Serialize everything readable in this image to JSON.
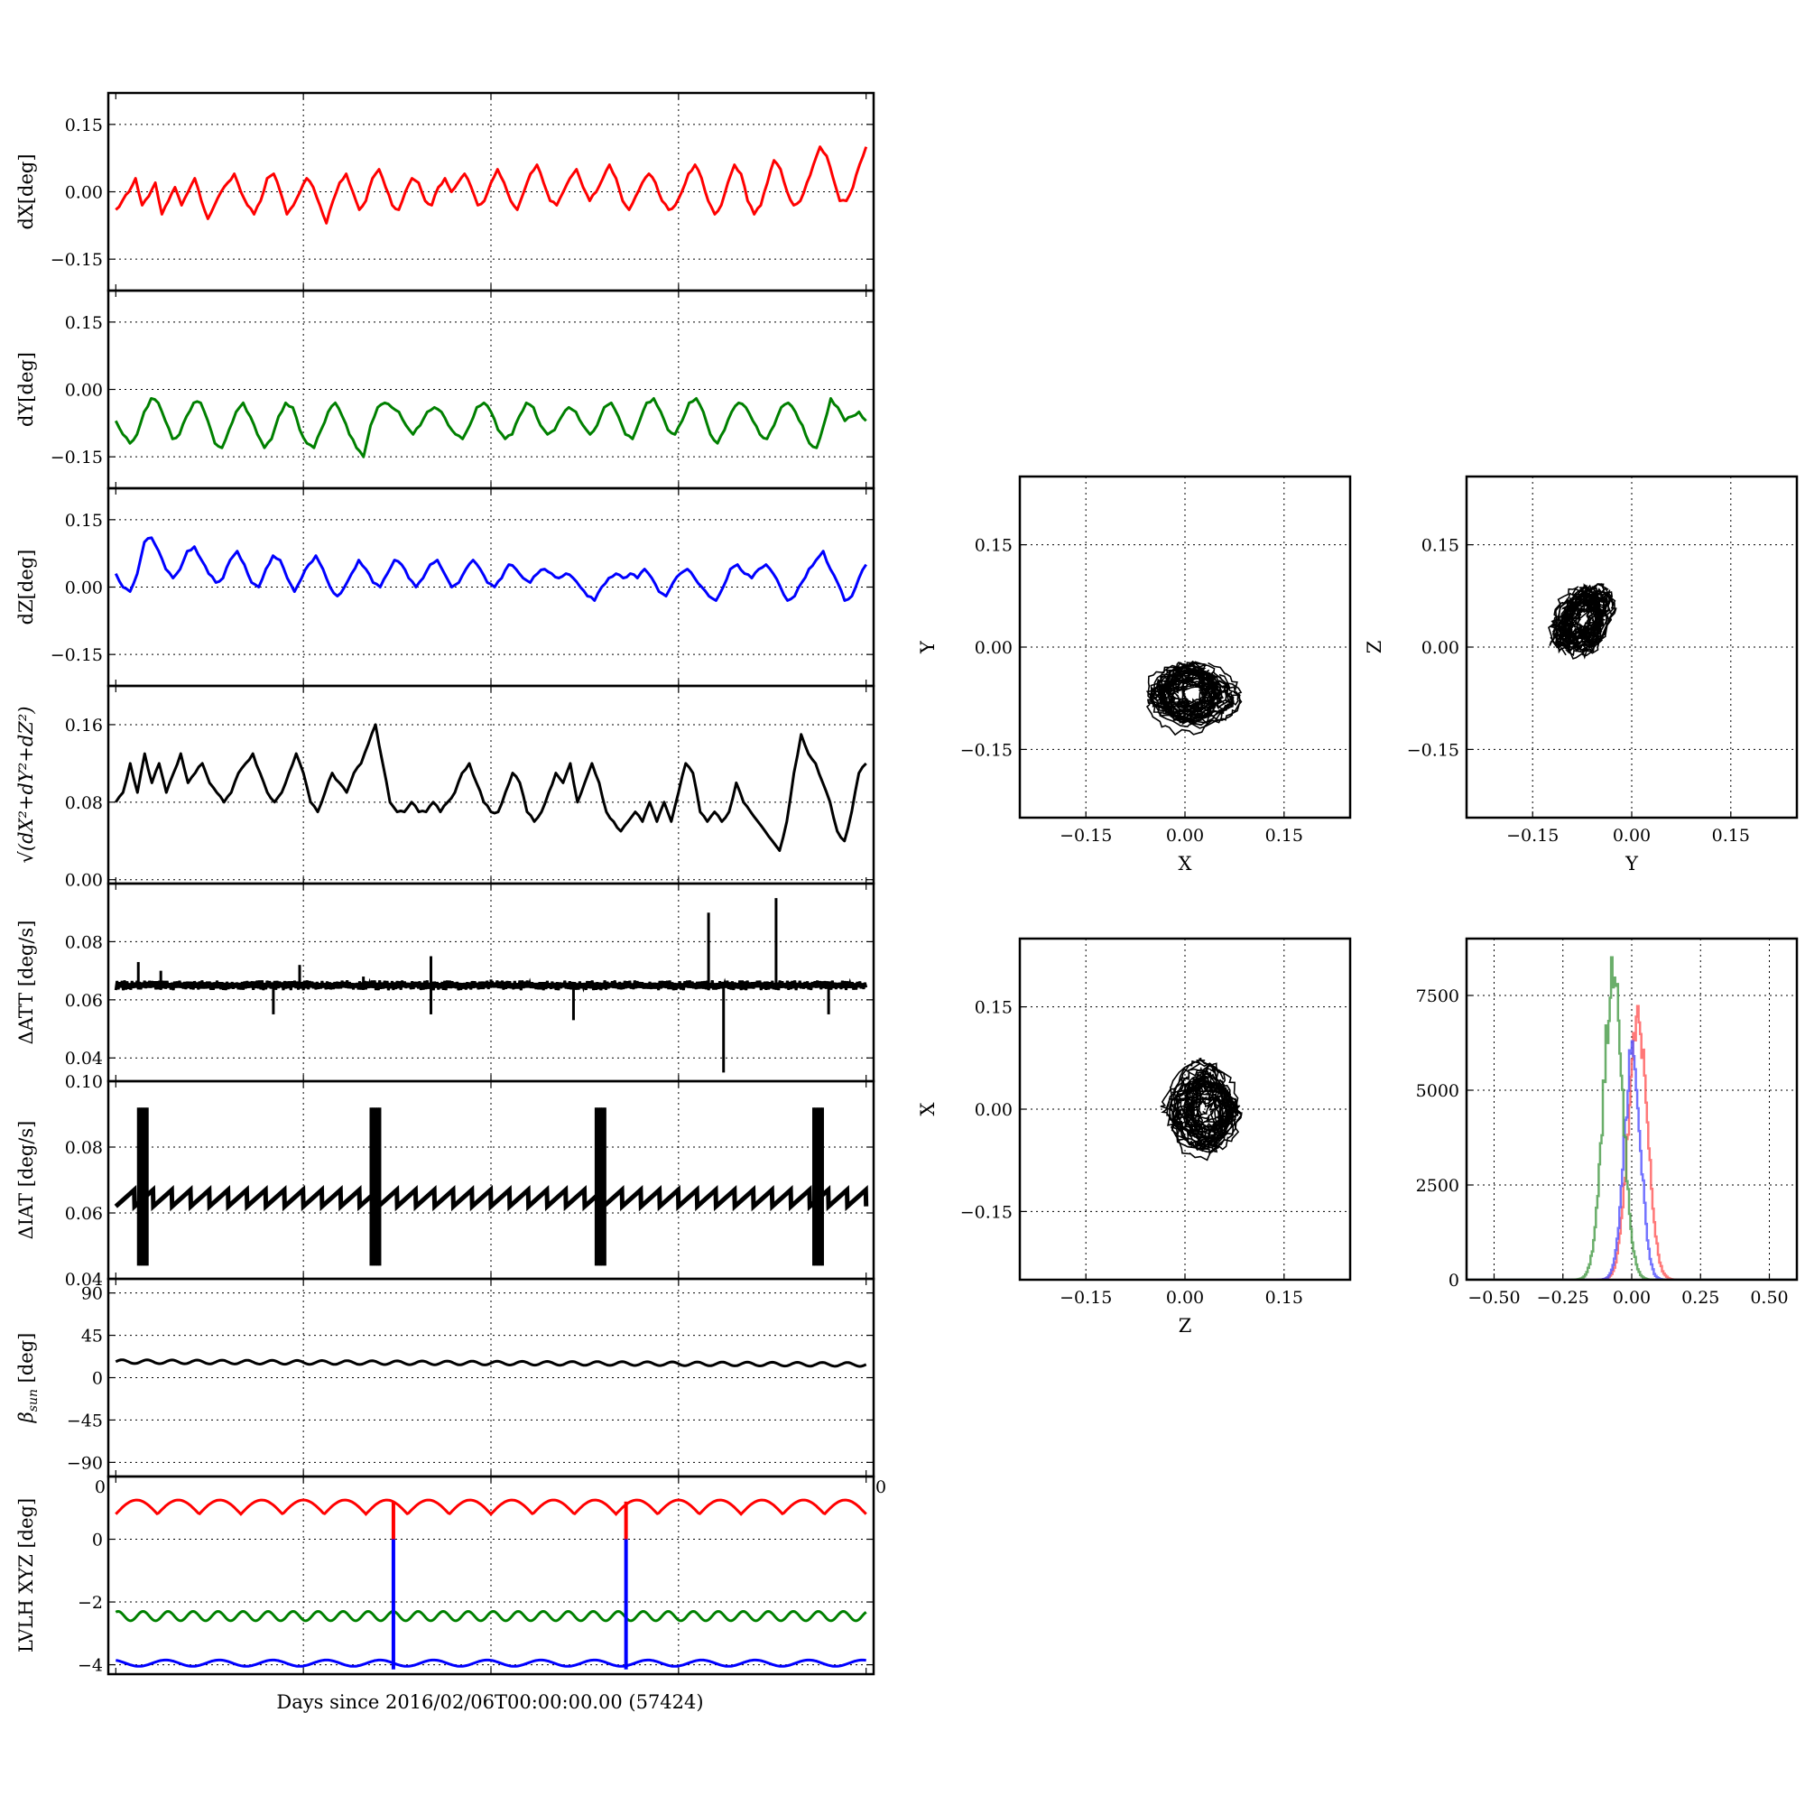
{
  "figure": {
    "shared_xlabel": "Days since 2016/02/06T00:00:00.00 (57424)"
  },
  "chart_data": [
    {
      "id": "dX",
      "type": "line",
      "ylabel": "dX[deg]",
      "ylabel_html": "dX[deg]",
      "ylim": [
        -0.22,
        0.22
      ],
      "yticks": [
        -0.15,
        0.0,
        0.15
      ],
      "yticklabels": [
        "−0.15",
        "0.00",
        "0.15"
      ],
      "xlim": [
        -0.01,
        1.01
      ],
      "grid": true,
      "series": [
        {
          "color": "#ff0000",
          "y": [
            -0.04,
            -0.02,
            0.0,
            0.03,
            -0.03,
            -0.01,
            0.02,
            -0.05,
            -0.02,
            0.01,
            -0.03,
            0.0,
            0.03,
            -0.02,
            -0.06,
            -0.03,
            0.0,
            0.02,
            0.04,
            0.0,
            -0.03,
            -0.05,
            -0.02,
            0.03,
            0.04,
            0.0,
            -0.05,
            -0.03,
            0.0,
            0.03,
            0.01,
            -0.03,
            -0.07,
            -0.02,
            0.02,
            0.04,
            0.0,
            -0.04,
            -0.02,
            0.03,
            0.05,
            0.01,
            -0.03,
            -0.04,
            0.0,
            0.03,
            0.02,
            -0.02,
            -0.03,
            0.01,
            0.03,
            0.0,
            0.02,
            0.04,
            0.01,
            -0.03,
            -0.02,
            0.02,
            0.05,
            0.02,
            -0.02,
            -0.04,
            0.0,
            0.04,
            0.06,
            0.02,
            -0.02,
            -0.03,
            0.0,
            0.03,
            0.05,
            0.01,
            -0.02,
            0.0,
            0.03,
            0.06,
            0.03,
            -0.02,
            -0.04,
            -0.01,
            0.02,
            0.04,
            0.02,
            -0.02,
            -0.04,
            -0.03,
            0.0,
            0.04,
            0.06,
            0.03,
            -0.02,
            -0.05,
            -0.03,
            0.02,
            0.06,
            0.04,
            -0.02,
            -0.05,
            -0.03,
            0.02,
            0.07,
            0.05,
            0.0,
            -0.03,
            -0.02,
            0.02,
            0.06,
            0.1,
            0.08,
            0.03,
            -0.02,
            -0.02,
            0.01,
            0.06,
            0.1
          ]
        }
      ]
    },
    {
      "id": "dY",
      "type": "line",
      "ylabel": "dY[deg]",
      "ylabel_html": "dY[deg]",
      "ylim": [
        -0.22,
        0.22
      ],
      "yticks": [
        -0.15,
        0.0,
        0.15
      ],
      "yticklabels": [
        "−0.15",
        "0.00",
        "0.15"
      ],
      "xlim": [
        -0.01,
        1.01
      ],
      "grid": true,
      "series": [
        {
          "color": "#008000",
          "y": [
            -0.07,
            -0.1,
            -0.12,
            -0.1,
            -0.05,
            -0.02,
            -0.03,
            -0.07,
            -0.11,
            -0.1,
            -0.06,
            -0.03,
            -0.03,
            -0.07,
            -0.12,
            -0.13,
            -0.09,
            -0.05,
            -0.03,
            -0.06,
            -0.1,
            -0.13,
            -0.11,
            -0.06,
            -0.03,
            -0.04,
            -0.09,
            -0.12,
            -0.13,
            -0.09,
            -0.05,
            -0.03,
            -0.06,
            -0.1,
            -0.13,
            -0.15,
            -0.08,
            -0.04,
            -0.03,
            -0.04,
            -0.05,
            -0.08,
            -0.1,
            -0.08,
            -0.05,
            -0.04,
            -0.05,
            -0.08,
            -0.1,
            -0.11,
            -0.08,
            -0.04,
            -0.03,
            -0.05,
            -0.09,
            -0.11,
            -0.1,
            -0.06,
            -0.03,
            -0.04,
            -0.08,
            -0.1,
            -0.09,
            -0.06,
            -0.04,
            -0.05,
            -0.08,
            -0.1,
            -0.08,
            -0.04,
            -0.03,
            -0.06,
            -0.1,
            -0.11,
            -0.07,
            -0.03,
            -0.02,
            -0.05,
            -0.09,
            -0.1,
            -0.07,
            -0.03,
            -0.02,
            -0.05,
            -0.1,
            -0.12,
            -0.09,
            -0.05,
            -0.03,
            -0.04,
            -0.07,
            -0.1,
            -0.11,
            -0.08,
            -0.04,
            -0.03,
            -0.05,
            -0.08,
            -0.12,
            -0.13,
            -0.08,
            -0.02,
            -0.04,
            -0.07,
            -0.06,
            -0.05,
            -0.07
          ]
        }
      ]
    },
    {
      "id": "dZ",
      "type": "line",
      "ylabel": "dZ[deg]",
      "ylabel_html": "dZ[deg]",
      "ylim": [
        -0.22,
        0.22
      ],
      "yticks": [
        -0.15,
        0.0,
        0.15
      ],
      "yticklabels": [
        "−0.15",
        "0.00",
        "0.15"
      ],
      "xlim": [
        -0.01,
        1.01
      ],
      "grid": true,
      "series": [
        {
          "color": "#0000ff",
          "y": [
            0.03,
            0.0,
            -0.01,
            0.03,
            0.1,
            0.11,
            0.08,
            0.04,
            0.02,
            0.04,
            0.08,
            0.09,
            0.06,
            0.03,
            0.01,
            0.02,
            0.06,
            0.08,
            0.05,
            0.01,
            0.0,
            0.04,
            0.07,
            0.06,
            0.02,
            -0.01,
            0.02,
            0.05,
            0.07,
            0.04,
            0.0,
            -0.02,
            0.0,
            0.03,
            0.06,
            0.04,
            0.01,
            0.0,
            0.03,
            0.06,
            0.05,
            0.02,
            0.0,
            0.02,
            0.05,
            0.06,
            0.03,
            0.0,
            0.01,
            0.04,
            0.06,
            0.04,
            0.01,
            0.0,
            0.02,
            0.05,
            0.04,
            0.02,
            0.01,
            0.03,
            0.04,
            0.03,
            0.02,
            0.03,
            0.02,
            0.0,
            -0.02,
            -0.03,
            0.0,
            0.02,
            0.03,
            0.02,
            0.03,
            0.02,
            0.04,
            0.02,
            -0.01,
            -0.02,
            0.01,
            0.03,
            0.04,
            0.02,
            0.0,
            -0.02,
            -0.03,
            0.0,
            0.04,
            0.05,
            0.03,
            0.02,
            0.04,
            0.05,
            0.03,
            0.0,
            -0.03,
            -0.02,
            0.01,
            0.04,
            0.06,
            0.08,
            0.04,
            0.01,
            -0.03,
            -0.02,
            0.02,
            0.05
          ]
        }
      ]
    },
    {
      "id": "dR",
      "type": "line",
      "ylabel": "√(dX²+dY²+dZ²)",
      "ylabel_html": "sqrt",
      "ylim": [
        -0.004,
        0.2
      ],
      "yticks": [
        0.0,
        0.08,
        0.16
      ],
      "yticklabels": [
        "0.00",
        "0.08",
        "0.16"
      ],
      "xlim": [
        -0.01,
        1.01
      ],
      "grid": true,
      "series": [
        {
          "color": "#000000",
          "y": [
            0.08,
            0.09,
            0.12,
            0.09,
            0.13,
            0.1,
            0.12,
            0.09,
            0.11,
            0.13,
            0.1,
            0.11,
            0.12,
            0.1,
            0.09,
            0.08,
            0.09,
            0.11,
            0.12,
            0.13,
            0.11,
            0.09,
            0.08,
            0.09,
            0.11,
            0.13,
            0.11,
            0.08,
            0.07,
            0.09,
            0.11,
            0.1,
            0.09,
            0.11,
            0.12,
            0.14,
            0.16,
            0.12,
            0.08,
            0.07,
            0.07,
            0.08,
            0.07,
            0.07,
            0.08,
            0.07,
            0.08,
            0.09,
            0.11,
            0.12,
            0.1,
            0.08,
            0.07,
            0.07,
            0.09,
            0.11,
            0.1,
            0.07,
            0.06,
            0.07,
            0.09,
            0.11,
            0.1,
            0.12,
            0.08,
            0.1,
            0.12,
            0.1,
            0.07,
            0.06,
            0.05,
            0.06,
            0.07,
            0.06,
            0.08,
            0.06,
            0.08,
            0.06,
            0.09,
            0.12,
            0.11,
            0.07,
            0.06,
            0.07,
            0.06,
            0.07,
            0.1,
            0.08,
            0.07,
            0.06,
            0.05,
            0.04,
            0.03,
            0.06,
            0.11,
            0.15,
            0.13,
            0.12,
            0.1,
            0.08,
            0.05,
            0.04,
            0.07,
            0.11,
            0.12
          ]
        }
      ]
    },
    {
      "id": "dATT",
      "type": "line",
      "ylabel": "ΔATT [deg/s]",
      "ylabel_html": "ΔATT [deg/s]",
      "ylim": [
        0.032,
        0.1
      ],
      "yticks": [
        0.04,
        0.06,
        0.08
      ],
      "yticklabels": [
        "0.04",
        "0.06",
        "0.08"
      ],
      "xlim": [
        -0.01,
        1.01
      ],
      "grid": true,
      "baseline": 0.065,
      "spikes": [
        [
          0.03,
          0.073
        ],
        [
          0.21,
          0.055
        ],
        [
          0.245,
          0.072
        ],
        [
          0.42,
          0.055
        ],
        [
          0.42,
          0.075
        ],
        [
          0.61,
          0.053
        ],
        [
          0.79,
          0.09
        ],
        [
          0.81,
          0.035
        ],
        [
          0.88,
          0.095
        ],
        [
          0.95,
          0.055
        ],
        [
          0.06,
          0.07
        ],
        [
          0.33,
          0.068
        ],
        [
          0.5,
          0.067
        ],
        [
          0.7,
          0.066
        ]
      ]
    },
    {
      "id": "dIAT",
      "type": "line",
      "ylabel": "ΔIAT [deg/s]",
      "ylabel_html": "ΔIAT [deg/s]",
      "ylim": [
        0.04,
        0.1
      ],
      "yticks": [
        0.04,
        0.06,
        0.08,
        0.1
      ],
      "yticklabels": [
        "0.04",
        "0.06",
        "0.08",
        "0.10"
      ],
      "xlim": [
        -0.01,
        1.01
      ],
      "grid": true,
      "sawtooth": {
        "low": 0.062,
        "high": 0.067,
        "teeth": 40
      },
      "bursts": [
        0.03,
        0.34,
        0.64,
        0.93
      ],
      "burst_range": [
        0.044,
        0.092
      ]
    },
    {
      "id": "beta",
      "type": "line",
      "ylabel": "βsun [deg]",
      "ylabel_html": "beta",
      "ylim": [
        -105,
        105
      ],
      "yticks": [
        -90,
        -45,
        0,
        45,
        90
      ],
      "yticklabels": [
        "−90",
        "−45",
        "0",
        "45",
        "90"
      ],
      "xlim": [
        -0.01,
        1.01
      ],
      "grid": true,
      "series": [
        {
          "color": "#000000",
          "mean": 17,
          "amplitude": 2,
          "cycles": 30
        }
      ]
    },
    {
      "id": "lvlh",
      "type": "line",
      "ylabel": "LVLH XYZ [deg]",
      "ylabel_html": "LVLH XYZ [deg]",
      "ylim": [
        -4.3,
        2.0
      ],
      "yticks": [
        -4,
        -2,
        0
      ],
      "yticklabels": [
        "−4",
        "−2",
        "0"
      ],
      "xlim": [
        -0.01,
        1.01
      ],
      "grid": true,
      "edge_ticklabels": [
        "0",
        "0"
      ],
      "series": [
        {
          "color": "#ff0000",
          "mean": 0.8,
          "amplitude": 0.45,
          "cycles": 18
        },
        {
          "color": "#008000",
          "mean": -2.45,
          "amplitude": 0.15,
          "cycles": 30
        },
        {
          "color": "#0000ff",
          "mean": -3.95,
          "amplitude": 0.1,
          "cycles": 14
        }
      ],
      "glitches": [
        0.37,
        0.68
      ]
    },
    {
      "id": "XY",
      "type": "scatter",
      "xlabel": "X",
      "ylabel": "Y",
      "xlim": [
        -0.25,
        0.25
      ],
      "ylim": [
        -0.25,
        0.25
      ],
      "xticks": [
        -0.15,
        0.0,
        0.15
      ],
      "xticklabels": [
        "−0.15",
        "0.00",
        "0.15"
      ],
      "yticks": [
        -0.15,
        0.0,
        0.15
      ],
      "yticklabels": [
        "−0.15",
        "0.00",
        "0.15"
      ],
      "cloud": {
        "cx": 0.01,
        "cy": -0.07,
        "rx": 0.06,
        "ry": 0.045
      }
    },
    {
      "id": "YZ",
      "type": "scatter",
      "xlabel": "Y",
      "ylabel": "Z",
      "xlim": [
        -0.25,
        0.25
      ],
      "ylim": [
        -0.25,
        0.25
      ],
      "xticks": [
        -0.15,
        0.0,
        0.15
      ],
      "xticklabels": [
        "−0.15",
        "0.00",
        "0.15"
      ],
      "yticks": [
        -0.15,
        0.0,
        0.15
      ],
      "yticklabels": [
        "−0.15",
        "0.00",
        "0.15"
      ],
      "cloud": {
        "cx": -0.075,
        "cy": 0.04,
        "rx": 0.05,
        "ry": 0.04,
        "tilt": 0.6
      }
    },
    {
      "id": "ZX",
      "type": "scatter",
      "xlabel": "Z",
      "ylabel": "X",
      "xlim": [
        -0.25,
        0.25
      ],
      "ylim": [
        -0.25,
        0.25
      ],
      "xticks": [
        -0.15,
        0.0,
        0.15
      ],
      "xticklabels": [
        "−0.15",
        "0.00",
        "0.15"
      ],
      "yticks": [
        -0.15,
        0.0,
        0.15
      ],
      "yticklabels": [
        "−0.15",
        "0.00",
        "0.15"
      ],
      "cloud": {
        "cx": 0.03,
        "cy": 0.0,
        "rx": 0.05,
        "ry": 0.06
      }
    },
    {
      "id": "hist",
      "type": "line",
      "xlim": [
        -0.6,
        0.6
      ],
      "ylim": [
        0,
        9000
      ],
      "xticks": [
        -0.5,
        -0.25,
        0.0,
        0.25,
        0.5
      ],
      "xticklabels": [
        "−0.50",
        "−0.25",
        "0.00",
        "0.25",
        "0.50"
      ],
      "yticks": [
        0,
        2500,
        5000,
        7500
      ],
      "yticklabels": [
        "0",
        "2500",
        "5000",
        "7500"
      ],
      "series": [
        {
          "color": "#ff6060",
          "mean": 0.02,
          "sd": 0.035,
          "peak": 7400
        },
        {
          "color": "#5a5aff",
          "mean": 0.0,
          "sd": 0.03,
          "peak": 6500
        },
        {
          "color": "#50a050",
          "mean": -0.07,
          "sd": 0.035,
          "peak": 8700
        }
      ]
    }
  ]
}
